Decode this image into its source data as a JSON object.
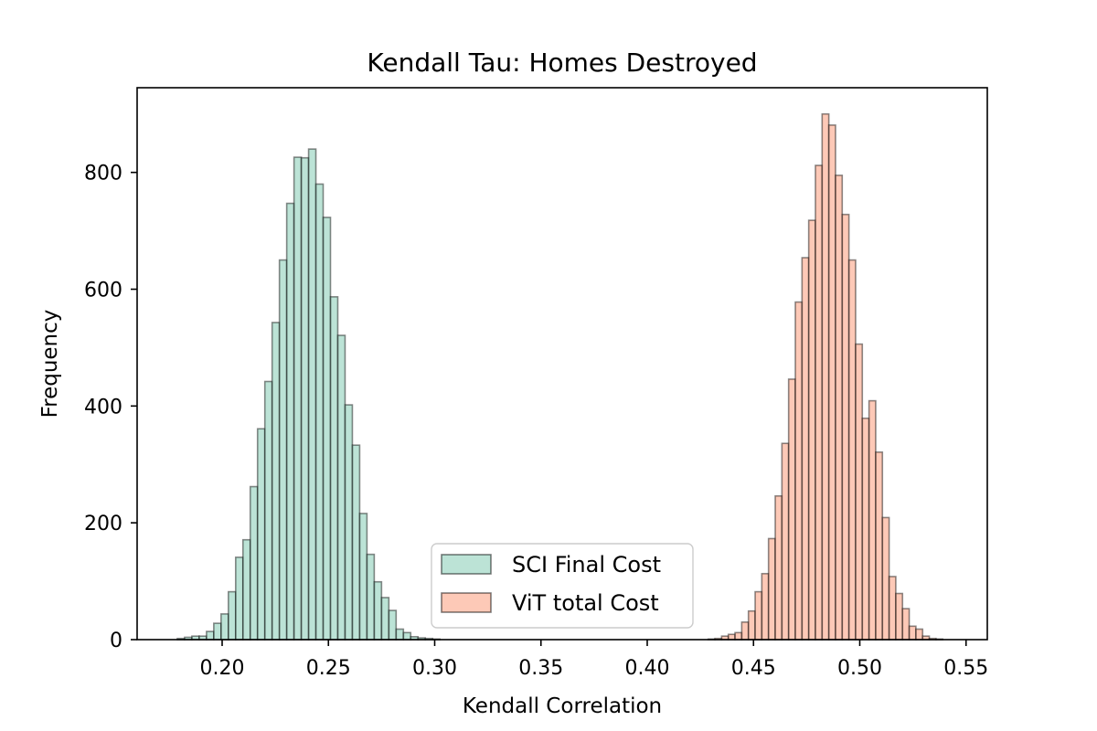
{
  "chart_data": {
    "type": "histogram",
    "title": "Kendall Tau: Homes Destroyed",
    "xlabel": "Kendall Correlation",
    "ylabel": "Frequency",
    "xlim": [
      0.16,
      0.56
    ],
    "ylim": [
      0,
      945
    ],
    "x_ticks": [
      "0.20",
      "0.25",
      "0.30",
      "0.35",
      "0.40",
      "0.45",
      "0.50",
      "0.55"
    ],
    "y_ticks": [
      "0",
      "200",
      "400",
      "600",
      "800"
    ],
    "grid": false,
    "legend_position": "lower-center",
    "series": [
      {
        "name": "SCI Final Cost",
        "color": "#8fd1bb",
        "alpha": 0.6,
        "edge_color": "#000000",
        "bin_start": 0.1789,
        "bin_width": 0.003432,
        "counts": [
          2,
          4,
          6,
          6,
          14,
          28,
          44,
          82,
          141,
          171,
          262,
          361,
          442,
          543,
          650,
          747,
          826,
          825,
          840,
          780,
          723,
          587,
          521,
          402,
          333,
          216,
          146,
          99,
          72,
          50,
          18,
          12,
          5,
          3,
          2,
          1
        ]
      },
      {
        "name": "ViT total Cost",
        "color": "#fca587",
        "alpha": 0.6,
        "edge_color": "#000000",
        "bin_start": 0.4287,
        "bin_width": 0.003152,
        "counts": [
          1,
          2,
          6,
          9,
          12,
          30,
          49,
          82,
          113,
          173,
          246,
          336,
          446,
          578,
          654,
          718,
          812,
          900,
          881,
          795,
          728,
          650,
          506,
          379,
          409,
          321,
          209,
          108,
          79,
          53,
          23,
          18,
          6,
          2,
          1
        ]
      }
    ]
  }
}
